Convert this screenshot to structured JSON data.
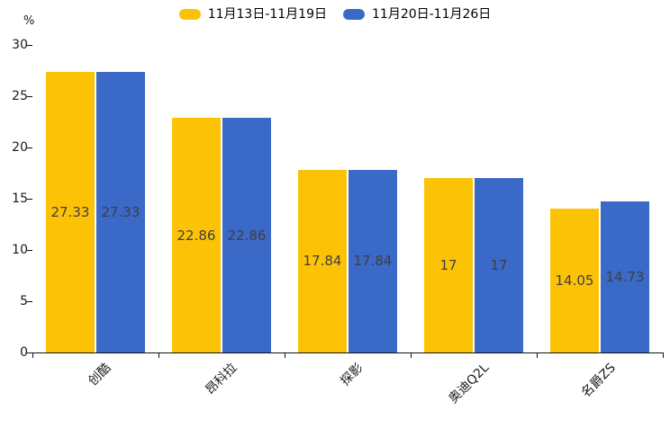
{
  "chart_data": {
    "type": "bar",
    "title": "",
    "categories": [
      "创酷",
      "昂科拉",
      "探影",
      "奥迪Q2L",
      "名爵ZS"
    ],
    "series": [
      {
        "name": "11月13日-11月19日",
        "color": "#FCC306",
        "values": [
          27.33,
          22.86,
          17.84,
          17,
          14.05
        ]
      },
      {
        "name": "11月20日-11月26日",
        "color": "#3A69C8",
        "values": [
          27.33,
          22.86,
          17.84,
          17,
          14.73
        ]
      }
    ],
    "bar_value_labels": [
      [
        "27.33",
        "22.86",
        "17.84",
        "17",
        "14.05"
      ],
      [
        "27.33",
        "22.86",
        "17.84",
        "17",
        "14.73"
      ]
    ],
    "xlabel": "",
    "ylabel": "%",
    "ylim": [
      0,
      30
    ],
    "yticks": [
      0,
      5,
      10,
      15,
      20,
      25,
      30
    ],
    "grid": false,
    "legend_position": "top",
    "value_labels_inside_bars": true
  },
  "colors": {
    "series1": "#FCC306",
    "series2": "#3A69C8",
    "axis": "#111111",
    "bar_label_text": "#3F3F3F",
    "tick_text": "#1A1A1A",
    "background": "#FFFFFF"
  }
}
